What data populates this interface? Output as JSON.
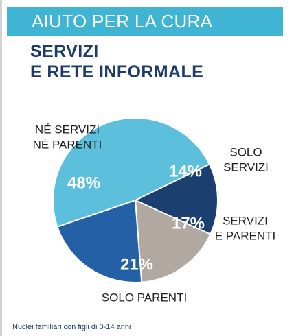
{
  "banner": {
    "text": "AIUTO PER LA CURA"
  },
  "title": {
    "line1": "SERVIZI",
    "line2": "E RETE INFORMALE"
  },
  "footnote": "Nuclei familiari con figli di 0-14 anni",
  "colors": {
    "banner": "#40b4d3",
    "title": "#1a3b6c",
    "slice_ne_servizi_ne_parenti": "#5cbfdc",
    "slice_solo_servizi": "#1b3f6e",
    "slice_servizi_e_parenti": "#b2a8a2",
    "slice_solo_parenti": "#2360a5"
  },
  "chart_data": {
    "type": "pie",
    "slices": [
      {
        "label": [
          "SOLO",
          "SERVIZI"
        ],
        "value": 14,
        "display": "14%",
        "color": "#1b3f6e"
      },
      {
        "label": [
          "SERVIZI",
          "E PARENTI"
        ],
        "value": 17,
        "display": "17%",
        "color": "#b2a8a2"
      },
      {
        "label": [
          "SOLO PARENTI"
        ],
        "value": 21,
        "display": "21%",
        "color": "#2360a5"
      },
      {
        "label": [
          "NÉ SERVIZI",
          "NÉ PARENTI"
        ],
        "value": 48,
        "display": "48%",
        "color": "#5cbfdc"
      }
    ]
  }
}
